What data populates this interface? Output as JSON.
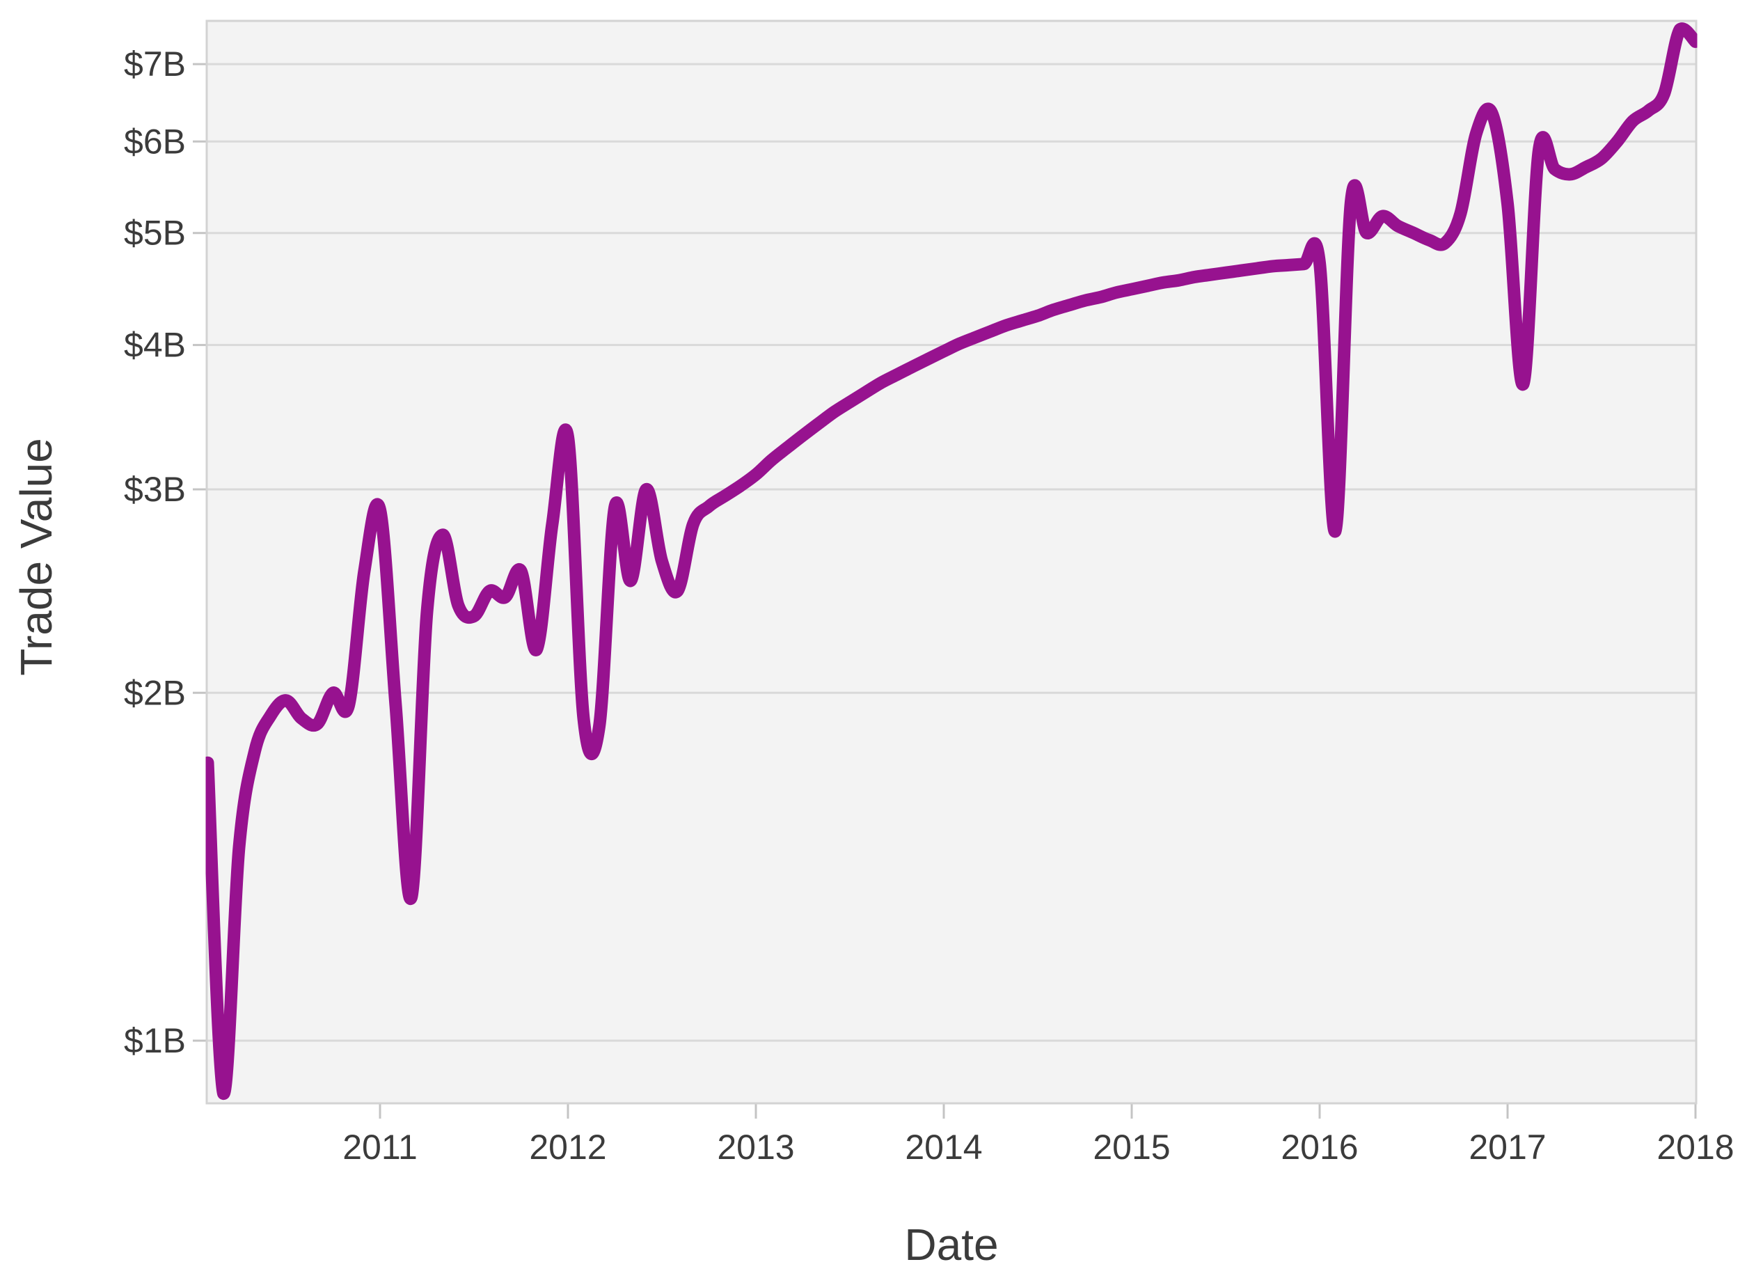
{
  "chart_data": {
    "type": "line",
    "title": "",
    "xlabel": "Date",
    "ylabel": "Trade Value",
    "x_tick_labels": [
      "2011",
      "2012",
      "2013",
      "2014",
      "2015",
      "2016",
      "2017",
      "2018"
    ],
    "y_ticks": [
      {
        "label": "$1B",
        "value": 1
      },
      {
        "label": "$2B",
        "value": 2
      },
      {
        "label": "$3B",
        "value": 3
      },
      {
        "label": "$4B",
        "value": 4
      },
      {
        "label": "$5B",
        "value": 5
      },
      {
        "label": "$6B",
        "value": 6
      },
      {
        "label": "$7B",
        "value": 7
      }
    ],
    "y_scale": "log",
    "x_range": [
      "2010-02",
      "2018-01"
    ],
    "y_range_billions": [
      0.88,
      7.65
    ],
    "grid": "horizontal-only",
    "legend_position": "none",
    "series": [
      {
        "name": "Trade Value",
        "unit": "USD billions",
        "points": [
          [
            "2010-02",
            1.74
          ],
          [
            "2010-03",
            0.9
          ],
          [
            "2010-04",
            1.47
          ],
          [
            "2010-05",
            1.78
          ],
          [
            "2010-06",
            1.91
          ],
          [
            "2010-07",
            1.97
          ],
          [
            "2010-08",
            1.9
          ],
          [
            "2010-09",
            1.88
          ],
          [
            "2010-10",
            2.0
          ],
          [
            "2010-11",
            1.95
          ],
          [
            "2010-12",
            2.55
          ],
          [
            "2011-01",
            2.88
          ],
          [
            "2011-02",
            1.95
          ],
          [
            "2011-03",
            1.33
          ],
          [
            "2011-04",
            2.35
          ],
          [
            "2011-05",
            2.74
          ],
          [
            "2011-06",
            2.38
          ],
          [
            "2011-07",
            2.33
          ],
          [
            "2011-08",
            2.45
          ],
          [
            "2011-09",
            2.42
          ],
          [
            "2011-10",
            2.55
          ],
          [
            "2011-11",
            2.18
          ],
          [
            "2011-12",
            2.8
          ],
          [
            "2012-01",
            3.33
          ],
          [
            "2012-02",
            1.9
          ],
          [
            "2012-03",
            1.87
          ],
          [
            "2012-04",
            2.9
          ],
          [
            "2012-05",
            2.5
          ],
          [
            "2012-06",
            3.0
          ],
          [
            "2012-07",
            2.6
          ],
          [
            "2012-08",
            2.45
          ],
          [
            "2012-09",
            2.8
          ],
          [
            "2012-10",
            2.9
          ],
          [
            "2012-11",
            2.96
          ],
          [
            "2012-12",
            3.02
          ],
          [
            "2013-01",
            3.09
          ],
          [
            "2013-02",
            3.18
          ],
          [
            "2013-03",
            3.26
          ],
          [
            "2013-04",
            3.34
          ],
          [
            "2013-05",
            3.42
          ],
          [
            "2013-06",
            3.5
          ],
          [
            "2013-07",
            3.57
          ],
          [
            "2013-08",
            3.64
          ],
          [
            "2013-09",
            3.71
          ],
          [
            "2013-10",
            3.77
          ],
          [
            "2013-11",
            3.83
          ],
          [
            "2013-12",
            3.89
          ],
          [
            "2014-01",
            3.95
          ],
          [
            "2014-02",
            4.01
          ],
          [
            "2014-03",
            4.06
          ],
          [
            "2014-04",
            4.11
          ],
          [
            "2014-05",
            4.16
          ],
          [
            "2014-06",
            4.2
          ],
          [
            "2014-07",
            4.24
          ],
          [
            "2014-08",
            4.29
          ],
          [
            "2014-09",
            4.33
          ],
          [
            "2014-10",
            4.37
          ],
          [
            "2014-11",
            4.4
          ],
          [
            "2014-12",
            4.44
          ],
          [
            "2015-01",
            4.47
          ],
          [
            "2015-02",
            4.5
          ],
          [
            "2015-03",
            4.53
          ],
          [
            "2015-04",
            4.55
          ],
          [
            "2015-05",
            4.58
          ],
          [
            "2015-06",
            4.6
          ],
          [
            "2015-07",
            4.62
          ],
          [
            "2015-08",
            4.64
          ],
          [
            "2015-09",
            4.66
          ],
          [
            "2015-10",
            4.68
          ],
          [
            "2015-11",
            4.69
          ],
          [
            "2015-12",
            4.7
          ],
          [
            "2016-01",
            4.71
          ],
          [
            "2016-02",
            2.76
          ],
          [
            "2016-03",
            5.32
          ],
          [
            "2016-04",
            5.0
          ],
          [
            "2016-05",
            5.17
          ],
          [
            "2016-06",
            5.07
          ],
          [
            "2016-07",
            5.0
          ],
          [
            "2016-08",
            4.93
          ],
          [
            "2016-09",
            4.9
          ],
          [
            "2016-10",
            5.2
          ],
          [
            "2016-11",
            6.1
          ],
          [
            "2016-12",
            6.35
          ],
          [
            "2017-01",
            5.3
          ],
          [
            "2017-02",
            3.7
          ],
          [
            "2017-03",
            5.9
          ],
          [
            "2017-04",
            5.68
          ],
          [
            "2017-05",
            5.62
          ],
          [
            "2017-06",
            5.7
          ],
          [
            "2017-07",
            5.8
          ],
          [
            "2017-08",
            6.0
          ],
          [
            "2017-09",
            6.25
          ],
          [
            "2017-10",
            6.38
          ],
          [
            "2017-11",
            6.6
          ],
          [
            "2017-12",
            7.5
          ],
          [
            "2018-01",
            7.32
          ]
        ]
      }
    ]
  },
  "style": {
    "line_color": "#97128F",
    "plot_bg": "#F3F3F3",
    "grid_color": "#D9D9D9",
    "border_color": "#D3D3D3",
    "tick_color": "#C4C4C4",
    "text_color": "#3B3B3B",
    "page_bg": "#FFFFFF"
  }
}
